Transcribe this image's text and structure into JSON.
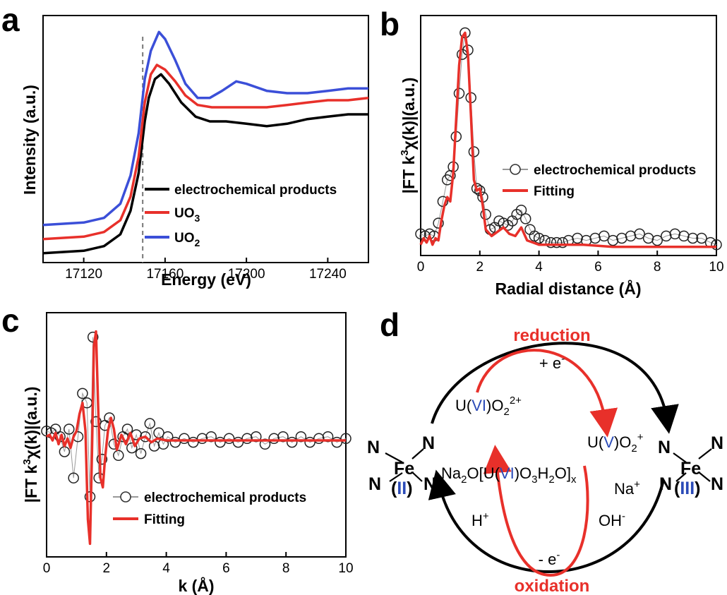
{
  "panels": {
    "a": "a",
    "b": "b",
    "c": "c",
    "d": "d"
  },
  "chart_data": [
    {
      "id": "a",
      "type": "line",
      "xlabel": "Energy (eV)",
      "ylabel": "Intensity (a.u.)",
      "xlim": [
        17100,
        17260
      ],
      "xticks": [
        "17120",
        "17160",
        "17200",
        "17240"
      ],
      "xtick_values": [
        17120,
        17160,
        17200,
        17240
      ],
      "vline": 17149,
      "legend_position": "center-right",
      "series": [
        {
          "name": "electrochemical products",
          "color": "#000000",
          "x": [
            17100,
            17120,
            17130,
            17138,
            17143,
            17147,
            17150,
            17152,
            17155,
            17158,
            17162,
            17168,
            17175,
            17182,
            17190,
            17200,
            17210,
            17220,
            17230,
            17240,
            17250,
            17260
          ],
          "y": [
            0.04,
            0.05,
            0.07,
            0.12,
            0.22,
            0.38,
            0.6,
            0.7,
            0.78,
            0.8,
            0.76,
            0.68,
            0.62,
            0.6,
            0.6,
            0.59,
            0.58,
            0.59,
            0.61,
            0.62,
            0.63,
            0.63
          ]
        },
        {
          "name": "UO3",
          "label_main": "UO",
          "label_sub": "3",
          "color": "#e8302a",
          "x": [
            17100,
            17120,
            17130,
            17138,
            17143,
            17147,
            17150,
            17153,
            17156,
            17160,
            17165,
            17170,
            17176,
            17183,
            17190,
            17200,
            17210,
            17220,
            17230,
            17240,
            17250,
            17260
          ],
          "y": [
            0.1,
            0.11,
            0.13,
            0.18,
            0.28,
            0.45,
            0.68,
            0.8,
            0.84,
            0.82,
            0.77,
            0.71,
            0.67,
            0.66,
            0.66,
            0.66,
            0.66,
            0.67,
            0.68,
            0.69,
            0.69,
            0.7
          ]
        },
        {
          "name": "UO2",
          "label_main": "UO",
          "label_sub": "2",
          "color": "#3b4fd8",
          "x": [
            17100,
            17120,
            17130,
            17138,
            17143,
            17147,
            17150,
            17153,
            17157,
            17160,
            17165,
            17170,
            17176,
            17182,
            17188,
            17195,
            17200,
            17210,
            17220,
            17230,
            17240,
            17250,
            17260
          ],
          "y": [
            0.16,
            0.17,
            0.19,
            0.25,
            0.37,
            0.55,
            0.78,
            0.9,
            0.98,
            0.95,
            0.86,
            0.76,
            0.7,
            0.7,
            0.73,
            0.77,
            0.76,
            0.73,
            0.72,
            0.72,
            0.73,
            0.74,
            0.74
          ]
        }
      ]
    },
    {
      "id": "b",
      "type": "line",
      "xlabel": "Radial distance (Å)",
      "ylabel_parts": [
        "|FT k",
        "3",
        "χ(k)|(a.u.)"
      ],
      "xlim": [
        0,
        10
      ],
      "xticks": [
        "0",
        "2",
        "4",
        "6",
        "8",
        "10"
      ],
      "legend_position": "center-right",
      "series": [
        {
          "name": "electrochemical products",
          "marker": "open-circle",
          "color": "#000000",
          "x": [
            0.0,
            0.15,
            0.3,
            0.45,
            0.6,
            0.75,
            0.9,
            1.0,
            1.1,
            1.2,
            1.3,
            1.4,
            1.5,
            1.6,
            1.7,
            1.8,
            1.9,
            2.0,
            2.1,
            2.2,
            2.35,
            2.5,
            2.65,
            2.8,
            2.95,
            3.1,
            3.25,
            3.4,
            3.55,
            3.7,
            3.85,
            4.0,
            4.2,
            4.4,
            4.6,
            4.8,
            5.0,
            5.3,
            5.6,
            5.9,
            6.2,
            6.5,
            6.8,
            7.1,
            7.4,
            7.7,
            8.0,
            8.3,
            8.6,
            8.9,
            9.2,
            9.5,
            9.8,
            10.0
          ],
          "y": [
            0.07,
            0.06,
            0.07,
            0.06,
            0.12,
            0.22,
            0.32,
            0.34,
            0.38,
            0.52,
            0.72,
            0.9,
            1.0,
            0.92,
            0.7,
            0.45,
            0.28,
            0.27,
            0.24,
            0.16,
            0.09,
            0.1,
            0.13,
            0.12,
            0.11,
            0.13,
            0.16,
            0.18,
            0.14,
            0.09,
            0.06,
            0.05,
            0.04,
            0.03,
            0.03,
            0.03,
            0.04,
            0.05,
            0.04,
            0.05,
            0.06,
            0.04,
            0.05,
            0.06,
            0.07,
            0.05,
            0.04,
            0.06,
            0.07,
            0.06,
            0.05,
            0.05,
            0.03,
            0.02
          ]
        },
        {
          "name": "Fitting",
          "color": "#e8302a",
          "x": [
            0.0,
            0.1,
            0.2,
            0.3,
            0.4,
            0.5,
            0.6,
            0.7,
            0.8,
            0.9,
            1.0,
            1.1,
            1.2,
            1.3,
            1.4,
            1.5,
            1.6,
            1.7,
            1.8,
            1.9,
            2.0,
            2.1,
            2.2,
            2.4,
            2.6,
            2.8,
            3.0,
            3.2,
            3.4,
            3.6,
            3.8,
            4.0,
            4.4,
            4.8,
            5.5,
            6.5,
            7.5,
            8.5,
            9.5,
            10.0
          ],
          "y": [
            0.02,
            0.05,
            0.03,
            0.06,
            0.02,
            0.05,
            0.04,
            0.13,
            0.2,
            0.24,
            0.22,
            0.35,
            0.6,
            0.85,
            0.98,
            1.0,
            0.9,
            0.62,
            0.32,
            0.27,
            0.28,
            0.2,
            0.09,
            0.06,
            0.08,
            0.1,
            0.07,
            0.06,
            0.1,
            0.04,
            0.03,
            0.02,
            0.02,
            0.02,
            0.02,
            0.01,
            0.01,
            0.01,
            0.01,
            0.01
          ]
        }
      ]
    },
    {
      "id": "c",
      "type": "line",
      "xlabel": "k (Å)",
      "ylabel_parts": [
        "|FT k",
        "3",
        "χ(k)|(a.u.)"
      ],
      "xlim": [
        0,
        10
      ],
      "xticks": [
        "0",
        "2",
        "4",
        "6",
        "8",
        "10"
      ],
      "legend_position": "bottom-right",
      "series": [
        {
          "name": "electrochemical products",
          "marker": "open-circle",
          "color": "#000000",
          "x": [
            0.0,
            0.15,
            0.3,
            0.45,
            0.6,
            0.75,
            0.9,
            1.05,
            1.2,
            1.35,
            1.45,
            1.55,
            1.65,
            1.75,
            1.85,
            1.95,
            2.1,
            2.25,
            2.4,
            2.55,
            2.7,
            2.85,
            3.0,
            3.15,
            3.3,
            3.45,
            3.6,
            3.75,
            3.9,
            4.05,
            4.3,
            4.6,
            4.9,
            5.2,
            5.5,
            5.8,
            6.1,
            6.4,
            6.7,
            7.0,
            7.3,
            7.6,
            7.9,
            8.2,
            8.5,
            8.8,
            9.1,
            9.4,
            9.7,
            10.0
          ],
          "y": [
            0.05,
            0.04,
            0.06,
            0.02,
            -0.06,
            0.06,
            -0.2,
            0.02,
            0.25,
            0.2,
            -0.3,
            0.55,
            0.1,
            -0.2,
            -0.1,
            0.08,
            0.12,
            -0.02,
            -0.08,
            0.02,
            0.06,
            -0.04,
            0.03,
            -0.07,
            0.02,
            0.09,
            -0.03,
            0.04,
            -0.02,
            0.02,
            -0.01,
            0.01,
            -0.01,
            0.01,
            0.02,
            -0.01,
            0.01,
            -0.01,
            0.01,
            0.02,
            -0.02,
            0.01,
            0.02,
            -0.01,
            0.02,
            -0.01,
            0.01,
            0.02,
            -0.01,
            0.01
          ]
        },
        {
          "name": "Fitting",
          "color": "#e8302a",
          "x": [
            0.0,
            0.1,
            0.2,
            0.3,
            0.4,
            0.5,
            0.6,
            0.7,
            0.8,
            0.9,
            1.0,
            1.1,
            1.2,
            1.3,
            1.38,
            1.45,
            1.52,
            1.58,
            1.65,
            1.72,
            1.8,
            1.88,
            1.95,
            2.05,
            2.15,
            2.25,
            2.35,
            2.5,
            2.65,
            2.8,
            2.95,
            3.1,
            3.3,
            3.5,
            3.7,
            4.0,
            4.5,
            5.0,
            6.0,
            7.0,
            8.0,
            9.0,
            10.0
          ],
          "y": [
            0.02,
            0.03,
            0.0,
            0.04,
            -0.02,
            0.03,
            -0.03,
            0.01,
            -0.04,
            0.02,
            0.05,
            0.14,
            0.2,
            0.05,
            -0.42,
            -0.55,
            -0.05,
            0.5,
            0.58,
            0.2,
            -0.2,
            -0.25,
            -0.1,
            0.05,
            0.12,
            0.06,
            -0.05,
            0.03,
            -0.02,
            0.04,
            -0.03,
            0.01,
            0.02,
            -0.01,
            0.01,
            0.0,
            0.0,
            0.0,
            0.0,
            0.0,
            0.0,
            0.0,
            0.0
          ]
        }
      ]
    }
  ],
  "diagram_d": {
    "reduction": "reduction",
    "oxidation": "oxidation",
    "plus_e_main": "+ e",
    "plus_e_sup": "-",
    "minus_e_main": "- e",
    "minus_e_sup": "-",
    "uvi_prefix": "U(",
    "uvi_roman": "VI",
    "uvi_suffix": ")O",
    "uvi_sub": "2",
    "uvi_sup": "2+",
    "uv_prefix": "U(",
    "uv_roman": "V",
    "uv_suffix": ")O",
    "uv_sub": "2",
    "uv_sup": "+",
    "na_main1": "Na",
    "na_sub1": "2",
    "na_main2": "O[U(",
    "na_roman": "VI",
    "na_main3": ")O",
    "na_sub2": "3",
    "na_main4": "H",
    "na_sub3": "2",
    "na_main5": "O]",
    "na_sub4": "x",
    "naplus_main": "Na",
    "naplus_sup": "+",
    "oh_main": "OH",
    "oh_sup": "-",
    "hplus_main": "H",
    "hplus_sup": "+",
    "N": "N",
    "Fe": "Fe",
    "fe_left_ox": "II",
    "fe_right_ox": "III",
    "paren_open": "(",
    "paren_close": ")"
  }
}
